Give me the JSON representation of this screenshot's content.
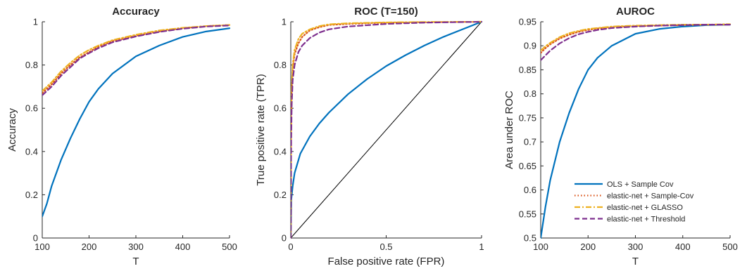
{
  "colors": {
    "ols": "#0072BD",
    "en_sample": "#D95319",
    "en_glasso": "#EDB120",
    "en_threshold": "#7E2F8E",
    "axis": "#262626",
    "diagonal": "#000000"
  },
  "legend": {
    "placement": "lower-right",
    "entries": [
      {
        "label": "OLS + Sample Cov",
        "color": "#0072BD",
        "style": "solid"
      },
      {
        "label": "elastic-net + Sample-Cov",
        "color": "#D95319",
        "style": "dotted"
      },
      {
        "label": "elastic-net + GLASSO",
        "color": "#EDB120",
        "style": "dashdot"
      },
      {
        "label": "elastic-net + Threshold",
        "color": "#7E2F8E",
        "style": "dashed"
      }
    ]
  },
  "chart_data": [
    {
      "type": "line",
      "title": "Accuracy",
      "xlabel": "T",
      "ylabel": "Accuracy",
      "xlim": [
        100,
        500
      ],
      "ylim": [
        0,
        1
      ],
      "xticks": [
        "100",
        "200",
        "300",
        "400",
        "500"
      ],
      "yticks": [
        "0",
        "0.2",
        "0.4",
        "0.6",
        "0.8",
        "1"
      ],
      "grid": false,
      "x": [
        100,
        110,
        120,
        140,
        160,
        180,
        200,
        220,
        250,
        300,
        350,
        400,
        450,
        500
      ],
      "series": [
        {
          "name": "OLS + Sample Cov",
          "values": [
            0.1,
            0.16,
            0.24,
            0.36,
            0.46,
            0.55,
            0.63,
            0.69,
            0.76,
            0.84,
            0.89,
            0.93,
            0.955,
            0.97
          ]
        },
        {
          "name": "elastic-net + Sample-Cov",
          "values": [
            0.67,
            0.69,
            0.71,
            0.76,
            0.8,
            0.835,
            0.86,
            0.885,
            0.91,
            0.935,
            0.955,
            0.97,
            0.98,
            0.985
          ]
        },
        {
          "name": "elastic-net + GLASSO",
          "values": [
            0.68,
            0.7,
            0.72,
            0.77,
            0.81,
            0.845,
            0.87,
            0.89,
            0.915,
            0.94,
            0.96,
            0.972,
            0.98,
            0.985
          ]
        },
        {
          "name": "elastic-net + Threshold",
          "values": [
            0.66,
            0.68,
            0.7,
            0.75,
            0.79,
            0.83,
            0.855,
            0.878,
            0.905,
            0.932,
            0.953,
            0.968,
            0.978,
            0.983
          ]
        }
      ]
    },
    {
      "type": "line",
      "title": "ROC (T=150)",
      "xlabel": "False positive rate (FPR)",
      "ylabel": "True positive rate (TPR)",
      "xlim": [
        0,
        1
      ],
      "ylim": [
        0,
        1
      ],
      "xticks": [
        "0",
        "0.5",
        "1"
      ],
      "yticks": [
        "0",
        "0.2",
        "0.4",
        "0.6",
        "0.8",
        "1"
      ],
      "grid": false,
      "diagonal": true,
      "series": [
        {
          "name": "OLS + Sample Cov",
          "x": [
            0,
            0.003,
            0.01,
            0.02,
            0.05,
            0.1,
            0.15,
            0.2,
            0.3,
            0.4,
            0.5,
            0.6,
            0.7,
            0.8,
            0.9,
            1.0
          ],
          "y": [
            0,
            0.18,
            0.24,
            0.3,
            0.39,
            0.47,
            0.53,
            0.58,
            0.665,
            0.735,
            0.795,
            0.845,
            0.89,
            0.93,
            0.965,
            1.0
          ]
        },
        {
          "name": "elastic-net + Sample-Cov",
          "x": [
            0,
            0.002,
            0.005,
            0.01,
            0.02,
            0.04,
            0.06,
            0.1,
            0.15,
            0.2,
            0.3,
            0.5,
            0.7,
            1.0
          ],
          "y": [
            0,
            0.5,
            0.68,
            0.78,
            0.85,
            0.9,
            0.93,
            0.96,
            0.975,
            0.985,
            0.99,
            0.996,
            0.998,
            1.0
          ]
        },
        {
          "name": "elastic-net + GLASSO",
          "x": [
            0,
            0.002,
            0.005,
            0.01,
            0.02,
            0.04,
            0.06,
            0.1,
            0.15,
            0.2,
            0.3,
            0.5,
            0.7,
            1.0
          ],
          "y": [
            0,
            0.52,
            0.7,
            0.8,
            0.87,
            0.92,
            0.945,
            0.965,
            0.98,
            0.988,
            0.993,
            0.997,
            0.999,
            1.0
          ]
        },
        {
          "name": "elastic-net + Threshold",
          "x": [
            0,
            0.002,
            0.005,
            0.01,
            0.02,
            0.04,
            0.06,
            0.1,
            0.15,
            0.2,
            0.3,
            0.5,
            0.7,
            1.0
          ],
          "y": [
            0,
            0.45,
            0.62,
            0.73,
            0.8,
            0.86,
            0.89,
            0.925,
            0.95,
            0.965,
            0.978,
            0.99,
            0.996,
            1.0
          ]
        }
      ]
    },
    {
      "type": "line",
      "title": "AUROC",
      "xlabel": "T",
      "ylabel": "Area under ROC",
      "xlim": [
        100,
        500
      ],
      "ylim": [
        0.5,
        0.95
      ],
      "xticks": [
        "100",
        "200",
        "300",
        "400",
        "500"
      ],
      "yticks": [
        "0.5",
        "0.55",
        "0.6",
        "0.65",
        "0.7",
        "0.75",
        "0.8",
        "0.85",
        "0.9",
        "0.95"
      ],
      "grid": false,
      "x": [
        100,
        110,
        120,
        140,
        160,
        180,
        200,
        220,
        250,
        300,
        350,
        400,
        450,
        500
      ],
      "series": [
        {
          "name": "OLS + Sample Cov",
          "values": [
            0.5,
            0.565,
            0.62,
            0.7,
            0.76,
            0.81,
            0.85,
            0.875,
            0.9,
            0.925,
            0.935,
            0.94,
            0.943,
            0.944
          ]
        },
        {
          "name": "elastic-net + Sample-Cov",
          "values": [
            0.885,
            0.895,
            0.903,
            0.915,
            0.923,
            0.929,
            0.933,
            0.936,
            0.939,
            0.941,
            0.942,
            0.943,
            0.944,
            0.944
          ]
        },
        {
          "name": "elastic-net + GLASSO",
          "values": [
            0.89,
            0.899,
            0.906,
            0.918,
            0.926,
            0.931,
            0.935,
            0.937,
            0.94,
            0.942,
            0.943,
            0.944,
            0.944,
            0.945
          ]
        },
        {
          "name": "elastic-net + Threshold",
          "values": [
            0.87,
            0.88,
            0.89,
            0.905,
            0.916,
            0.924,
            0.929,
            0.933,
            0.937,
            0.94,
            0.942,
            0.943,
            0.944,
            0.944
          ]
        }
      ]
    }
  ]
}
